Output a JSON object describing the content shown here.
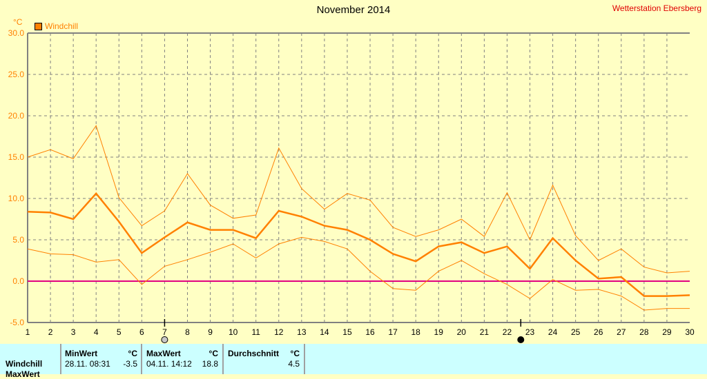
{
  "title": "November 2014",
  "station": "Wetterstation Ebersberg",
  "unit": "°C",
  "legend": [
    {
      "label": "Windchill",
      "color": "#ff8000"
    }
  ],
  "chart_data": {
    "type": "line",
    "title": "November 2014",
    "ylabel": "°C",
    "ylim": [
      -5,
      30
    ],
    "yticks": [
      "30.0",
      "25.0",
      "20.0",
      "15.0",
      "10.0",
      "5.0",
      "0.0",
      "-5.0"
    ],
    "x": [
      1,
      2,
      3,
      4,
      5,
      6,
      7,
      8,
      9,
      10,
      11,
      12,
      13,
      14,
      15,
      16,
      17,
      18,
      19,
      20,
      21,
      22,
      23,
      24,
      25,
      26,
      27,
      28,
      29,
      30
    ],
    "grid": true,
    "series": [
      {
        "name": "Windchill max",
        "color": "#ff8000",
        "values": [
          15.0,
          15.9,
          14.8,
          18.8,
          10.1,
          6.7,
          8.5,
          13.0,
          9.2,
          7.6,
          8.0,
          16.1,
          11.2,
          8.7,
          10.6,
          9.8,
          6.5,
          5.4,
          6.2,
          7.5,
          5.4,
          10.7,
          5.0,
          11.6,
          5.5,
          2.5,
          3.9,
          1.7,
          1.0,
          1.2
        ]
      },
      {
        "name": "Windchill",
        "color": "#ff8000",
        "values": [
          8.4,
          8.3,
          7.5,
          10.6,
          7.2,
          3.4,
          5.3,
          7.1,
          6.2,
          6.2,
          5.2,
          8.5,
          7.8,
          6.7,
          6.2,
          5.0,
          3.3,
          2.4,
          4.2,
          4.7,
          3.4,
          4.2,
          1.5,
          5.2,
          2.5,
          0.3,
          0.5,
          -1.8,
          -1.8,
          -1.7
        ]
      },
      {
        "name": "Windchill min",
        "color": "#ff8000",
        "values": [
          3.9,
          3.3,
          3.2,
          2.3,
          2.6,
          -0.4,
          1.8,
          2.6,
          3.5,
          4.5,
          2.8,
          4.5,
          5.3,
          4.8,
          3.9,
          1.2,
          -0.9,
          -1.1,
          1.2,
          2.5,
          0.9,
          -0.4,
          -2.1,
          0.2,
          -1.1,
          -1.0,
          -1.8,
          -3.5,
          -3.3,
          -3.3
        ]
      }
    ],
    "zero_line_color": "#e00080",
    "moon_markers": [
      {
        "day": 7,
        "phase": "first-quarter"
      },
      {
        "day": 22.6,
        "phase": "new-moon"
      }
    ]
  },
  "table": {
    "row_label": "Windchill",
    "row2_label": "MaxWert",
    "min_header": "MinWert",
    "min_unit": "°C",
    "min_time": "28.11.  08:31",
    "min_value": "-3.5",
    "max_header": "MaxWert",
    "max_unit": "°C",
    "max_time": "04.11.  14:12",
    "max_value": "18.8",
    "avg_header": "Durchschnitt",
    "avg_unit": "°C",
    "avg_value": "4.5"
  }
}
